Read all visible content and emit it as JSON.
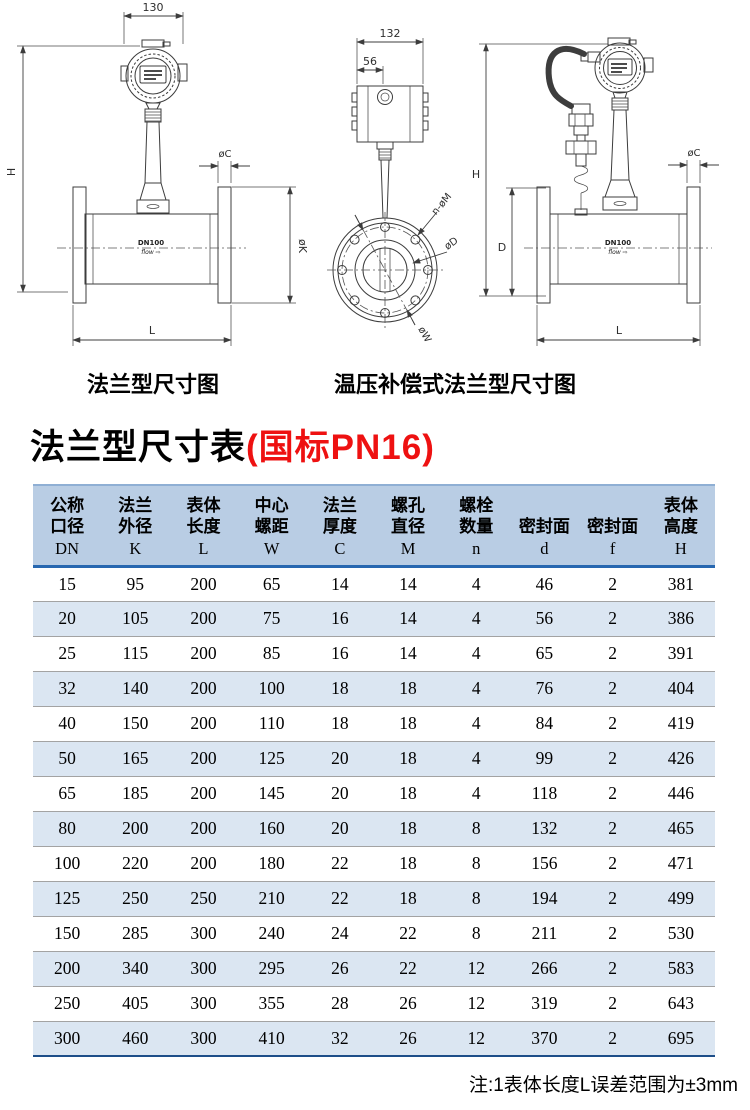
{
  "diagrams": {
    "left": {
      "caption": "法兰型尺寸图",
      "body_label": "DN100",
      "flow_label": "flow ⇨",
      "dims": {
        "top_width": "130",
        "height": "H",
        "flange_thickness": "øC",
        "flange_diameter": "øK",
        "length": "L"
      }
    },
    "middle": {
      "caption": "温压补偿式法兰型尺寸图",
      "dims": {
        "top_width": "132",
        "inner_width": "56",
        "bolt_holes": "n-øM",
        "inner_diameter": "øD",
        "bolt_circle": "øW"
      }
    },
    "right": {
      "body_label": "DN100",
      "flow_label": "flow ⇨",
      "dims": {
        "height": "H",
        "meter_height": "D",
        "flange_thickness": "øC",
        "length": "L"
      }
    }
  },
  "table_section": {
    "title_black": "法兰型尺寸表",
    "title_red": "(国标PN16)",
    "note": "注:1表体长度L误差范围为±3mm",
    "columns": [
      {
        "lines": [
          "公称",
          "口径"
        ],
        "letter": "DN"
      },
      {
        "lines": [
          "法兰",
          "外径"
        ],
        "letter": "K"
      },
      {
        "lines": [
          "表体",
          "长度"
        ],
        "letter": "L"
      },
      {
        "lines": [
          "中心",
          "螺距"
        ],
        "letter": "W"
      },
      {
        "lines": [
          "法兰",
          "厚度"
        ],
        "letter": "C"
      },
      {
        "lines": [
          "螺孔",
          "直径"
        ],
        "letter": "M"
      },
      {
        "lines": [
          "螺栓",
          "数量"
        ],
        "letter": "n"
      },
      {
        "lines": [
          "密封面"
        ],
        "letter": "d"
      },
      {
        "lines": [
          "密封面"
        ],
        "letter": "f"
      },
      {
        "lines": [
          "表体",
          "高度"
        ],
        "letter": "H"
      }
    ],
    "rows": [
      [
        15,
        95,
        200,
        65,
        14,
        14,
        4,
        46,
        2,
        381
      ],
      [
        20,
        105,
        200,
        75,
        16,
        14,
        4,
        56,
        2,
        386
      ],
      [
        25,
        115,
        200,
        85,
        16,
        14,
        4,
        65,
        2,
        391
      ],
      [
        32,
        140,
        200,
        100,
        18,
        18,
        4,
        76,
        2,
        404
      ],
      [
        40,
        150,
        200,
        110,
        18,
        18,
        4,
        84,
        2,
        419
      ],
      [
        50,
        165,
        200,
        125,
        20,
        18,
        4,
        99,
        2,
        426
      ],
      [
        65,
        185,
        200,
        145,
        20,
        18,
        4,
        118,
        2,
        446
      ],
      [
        80,
        200,
        200,
        160,
        20,
        18,
        8,
        132,
        2,
        465
      ],
      [
        100,
        220,
        200,
        180,
        22,
        18,
        8,
        156,
        2,
        471
      ],
      [
        125,
        250,
        250,
        210,
        22,
        18,
        8,
        194,
        2,
        499
      ],
      [
        150,
        285,
        300,
        240,
        24,
        22,
        8,
        211,
        2,
        530
      ],
      [
        200,
        340,
        300,
        295,
        26,
        22,
        12,
        266,
        2,
        583
      ],
      [
        250,
        405,
        300,
        355,
        28,
        26,
        12,
        319,
        2,
        643
      ],
      [
        300,
        460,
        300,
        410,
        32,
        26,
        12,
        370,
        2,
        695
      ]
    ]
  },
  "colors": {
    "header_bg": "#b9cde4",
    "alt_row_bg": "#dbe6f2",
    "header_rule": "#2767b0",
    "header_top_rule": "#8fafd4",
    "row_rule": "#a3a3a3",
    "table_bottom_rule": "#1d4e89",
    "title_red": "#ee1111"
  }
}
